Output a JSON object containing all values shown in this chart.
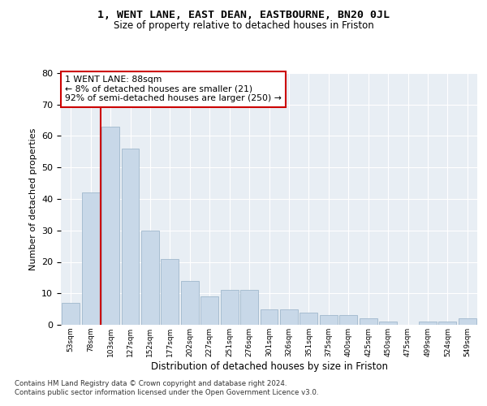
{
  "title1": "1, WENT LANE, EAST DEAN, EASTBOURNE, BN20 0JL",
  "title2": "Size of property relative to detached houses in Friston",
  "xlabel": "Distribution of detached houses by size in Friston",
  "ylabel": "Number of detached properties",
  "bin_labels": [
    "53sqm",
    "78sqm",
    "103sqm",
    "127sqm",
    "152sqm",
    "177sqm",
    "202sqm",
    "227sqm",
    "251sqm",
    "276sqm",
    "301sqm",
    "326sqm",
    "351sqm",
    "375sqm",
    "400sqm",
    "425sqm",
    "450sqm",
    "475sqm",
    "499sqm",
    "524sqm",
    "549sqm"
  ],
  "values": [
    7,
    42,
    63,
    56,
    30,
    21,
    14,
    9,
    11,
    11,
    5,
    5,
    4,
    3,
    3,
    2,
    1,
    0,
    1,
    1,
    2
  ],
  "bar_color": "#c8d8e8",
  "bar_edge_color": "#a0b8cc",
  "vline_x": 1.5,
  "vline_color": "#cc0000",
  "annotation_text": "1 WENT LANE: 88sqm\n← 8% of detached houses are smaller (21)\n92% of semi-detached houses are larger (250) →",
  "annotation_box_color": "#ffffff",
  "annotation_box_edge": "#cc0000",
  "ylim": [
    0,
    80
  ],
  "yticks": [
    0,
    10,
    20,
    30,
    40,
    50,
    60,
    70,
    80
  ],
  "background_color": "#e8eef4",
  "footer": "Contains HM Land Registry data © Crown copyright and database right 2024.\nContains public sector information licensed under the Open Government Licence v3.0."
}
